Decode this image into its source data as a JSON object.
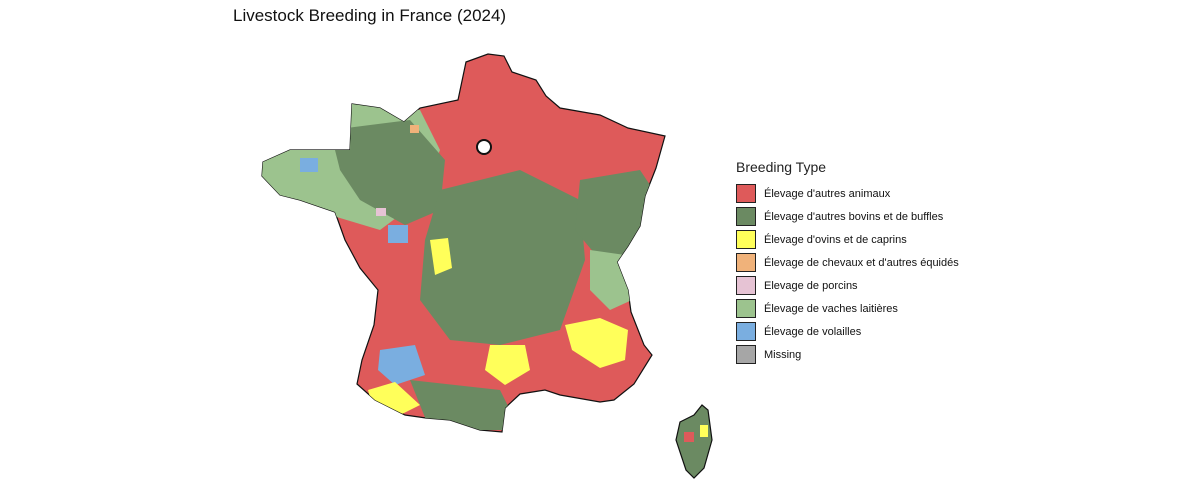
{
  "title": "Livestock Breeding in France (2024)",
  "legend": {
    "title": "Breeding Type",
    "items": [
      {
        "label": "Élevage d'autres animaux",
        "color": "#de5a5a"
      },
      {
        "label": "Élevage d'autres bovins et de buffles",
        "color": "#6b8a62"
      },
      {
        "label": "Élevage d'ovins et de caprins",
        "color": "#ffff5a"
      },
      {
        "label": "Élevage de chevaux et d'autres équidés",
        "color": "#f0b27a"
      },
      {
        "label": "Elevage de porcins",
        "color": "#e6c3d4"
      },
      {
        "label": "Élevage de vaches laitières",
        "color": "#9cc38e"
      },
      {
        "label": "Élevage de volailles",
        "color": "#7aaee0"
      },
      {
        "label": "Missing",
        "color": "#a6a6a6"
      }
    ]
  },
  "map": {
    "regions": [
      {
        "name": "mainland-france",
        "fill": "#de5a5a"
      },
      {
        "name": "corsica",
        "fill": "#6b8a62"
      }
    ]
  }
}
